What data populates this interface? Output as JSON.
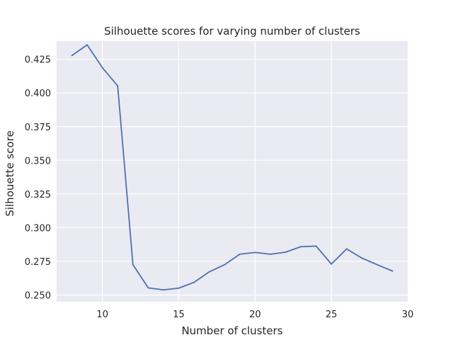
{
  "chart_data": {
    "type": "line",
    "title": "Silhouette scores for varying number of clusters",
    "xlabel": "Number of clusters",
    "ylabel": "Silhouette score",
    "xlim": [
      7.0,
      30.0
    ],
    "ylim": [
      0.245,
      0.4385
    ],
    "xticks": [
      10,
      15,
      20,
      25,
      30
    ],
    "yticks": [
      0.25,
      0.275,
      0.3,
      0.325,
      0.35,
      0.375,
      0.4,
      0.425
    ],
    "xtick_labels": [
      "10",
      "15",
      "20",
      "25",
      "30"
    ],
    "ytick_labels": [
      "0.250",
      "0.275",
      "0.300",
      "0.325",
      "0.350",
      "0.375",
      "0.400",
      "0.425"
    ],
    "grid": true,
    "style": {
      "background": "#eaeaf2",
      "grid_color": "#ffffff",
      "line_color": "#4c72b0"
    },
    "series": [
      {
        "x": [
          8,
          9,
          10,
          11,
          12,
          13,
          14,
          15,
          16,
          17,
          18,
          19,
          20,
          21,
          22,
          23,
          24,
          25,
          26,
          27,
          28,
          29
        ],
        "values": [
          0.4278,
          0.4357,
          0.4187,
          0.4052,
          0.2725,
          0.2553,
          0.2538,
          0.2551,
          0.2594,
          0.2672,
          0.2725,
          0.2803,
          0.2816,
          0.2803,
          0.2818,
          0.2859,
          0.2863,
          0.273,
          0.2842,
          0.2774,
          0.2725,
          0.2678
        ]
      }
    ]
  }
}
